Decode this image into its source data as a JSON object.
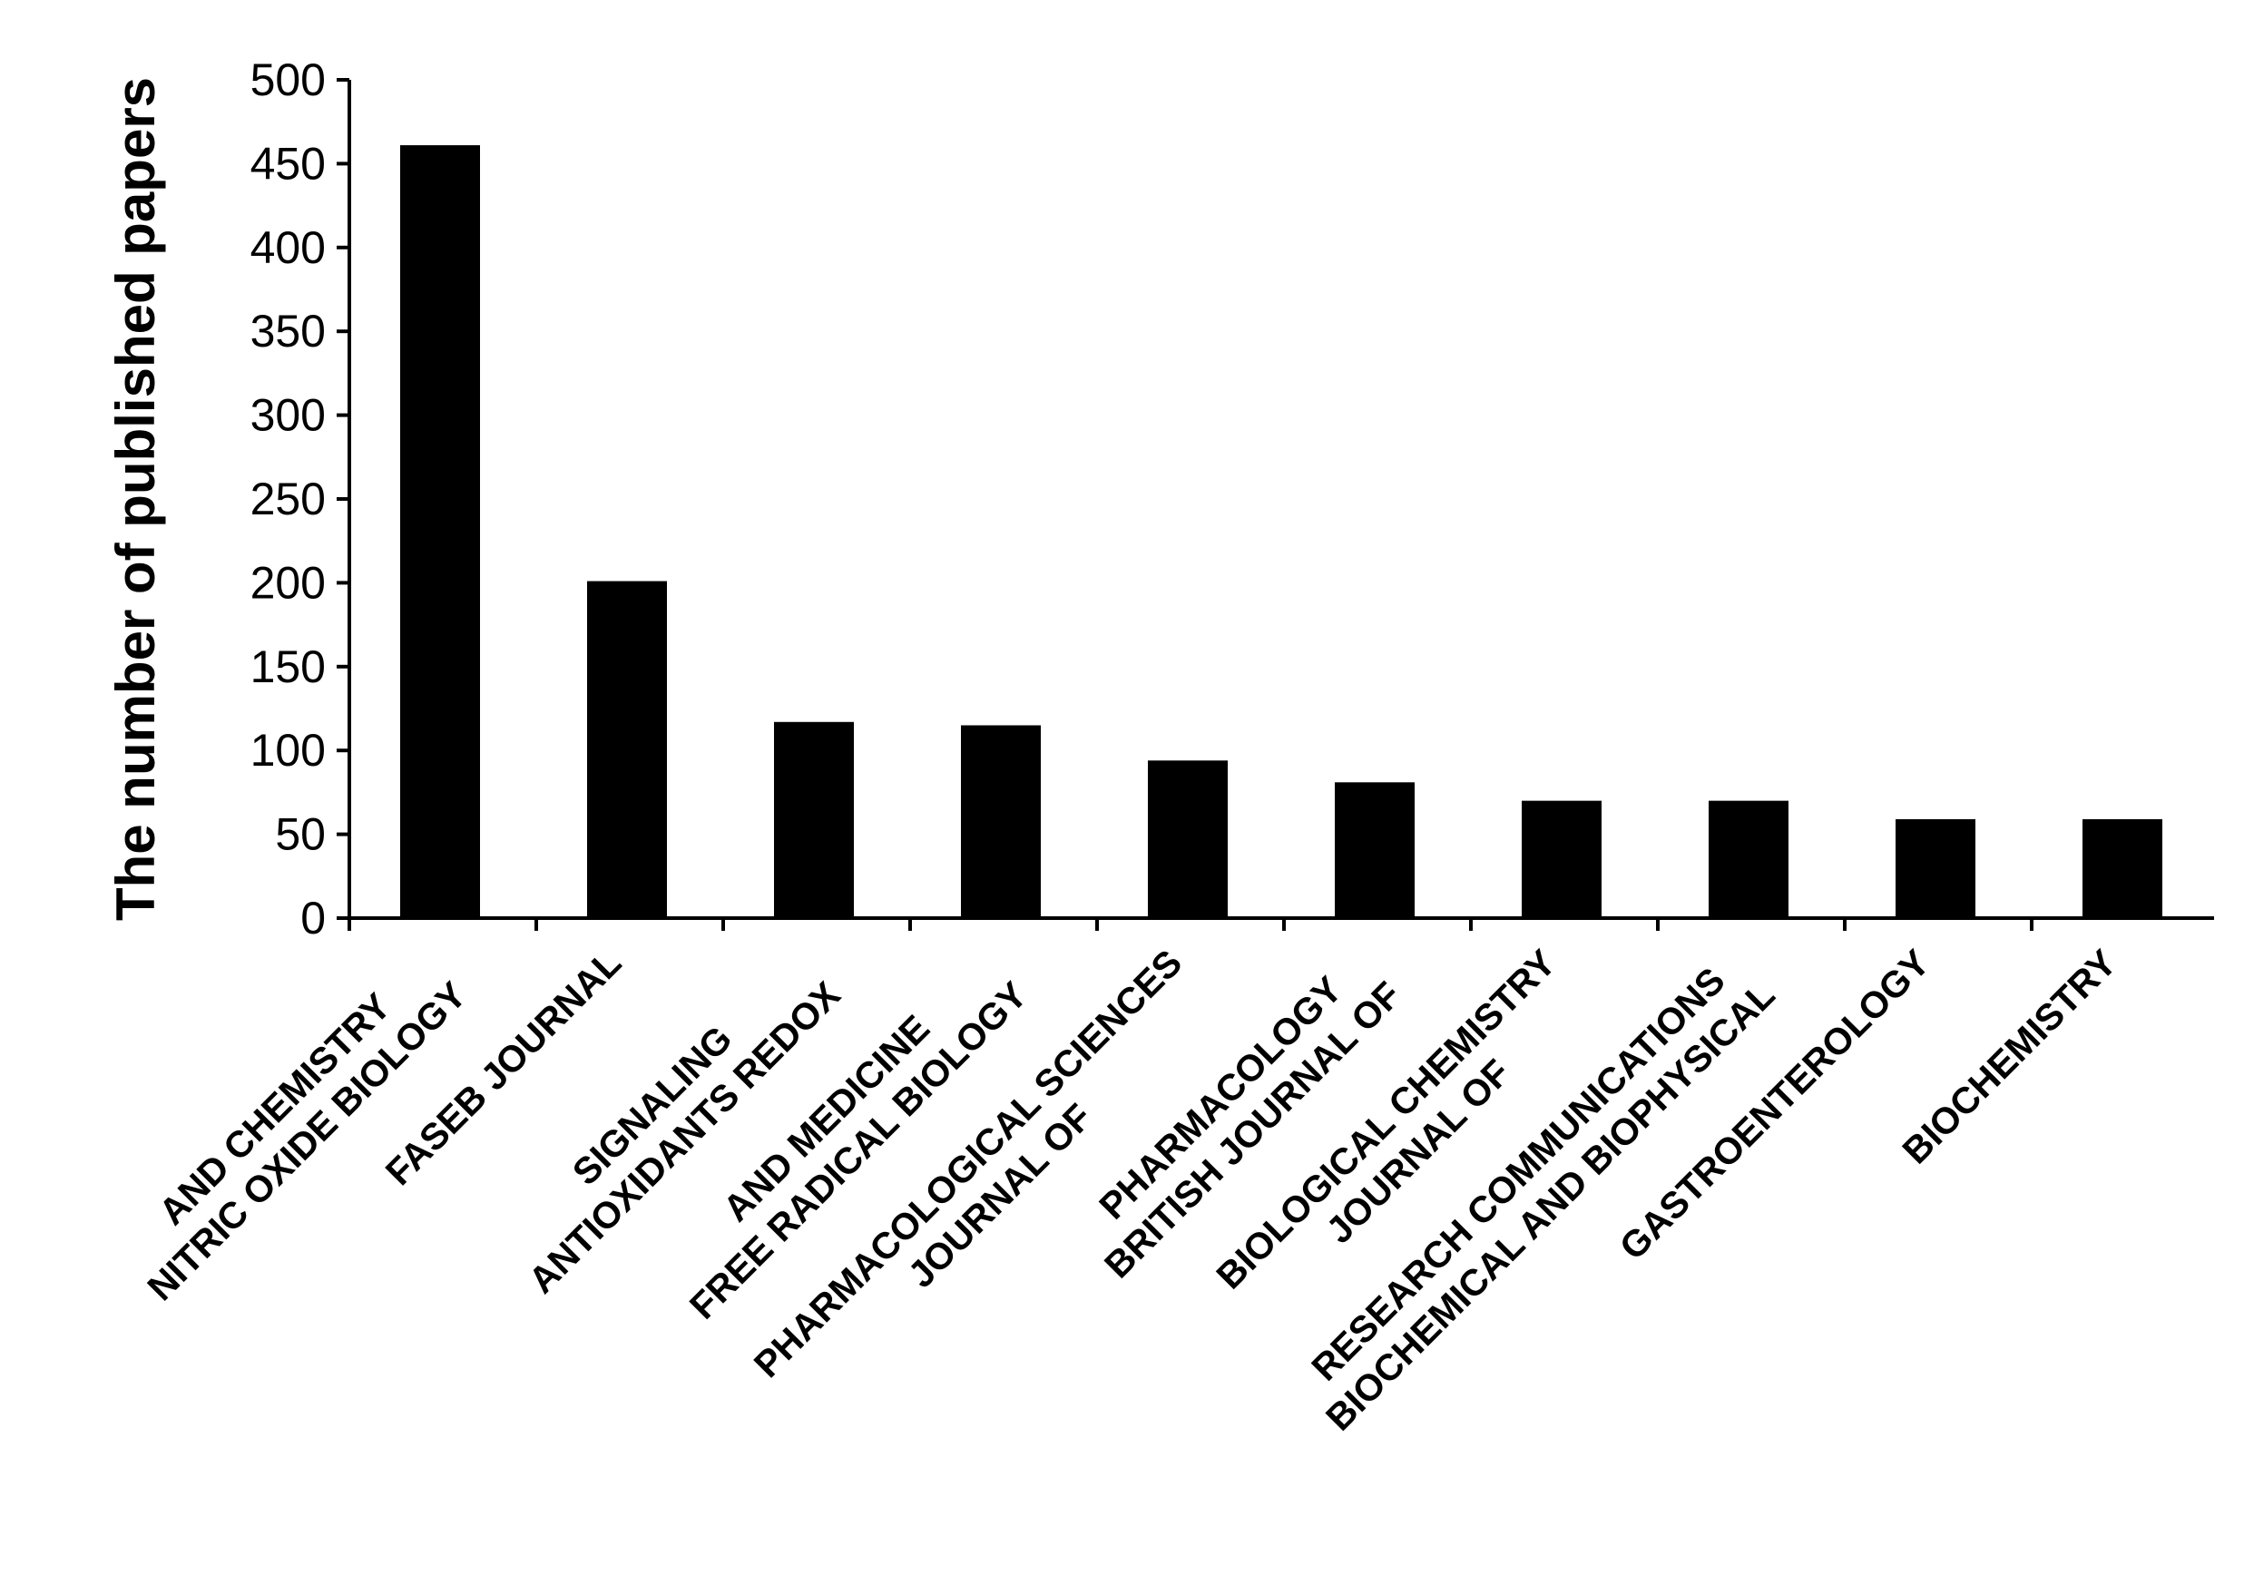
{
  "chart_data": {
    "type": "bar",
    "categories": [
      [
        "NITRIC OXIDE  BIOLOGY",
        "AND CHEMISTRY"
      ],
      [
        "FASEB  JOURNAL"
      ],
      [
        "ANTIOXIDANTS REDOX",
        "SIGNALING"
      ],
      [
        "FREE RADICAL  BIOLOGY",
        "AND MEDICINE"
      ],
      [
        "JOURNAL OF",
        "PHARMACOLOGICAL  SCIENCES"
      ],
      [
        "BRITISH  JOURNAL OF",
        "PHARMACOLOGY"
      ],
      [
        "JOURNAL OF",
        "BIOLOGICAL  CHEMISTRY"
      ],
      [
        "BIOCHEMICAL  AND BIOPHYSICAL",
        "RESEARCH COMMUNICATIONS"
      ],
      [
        "GASTROENTEROLOGY"
      ],
      [
        "BIOCHEMISTRY"
      ]
    ],
    "values": [
      461,
      201,
      117,
      115,
      94,
      81,
      70,
      70,
      59,
      59
    ],
    "title": "",
    "xlabel": "",
    "ylabel": "The number of published papers",
    "ylim": [
      0,
      500
    ],
    "yticks": [
      0,
      50,
      100,
      150,
      200,
      250,
      300,
      350,
      400,
      450,
      500
    ],
    "bar_color": "#000000",
    "axis_color": "#000000",
    "grid": false,
    "legend": "none"
  }
}
